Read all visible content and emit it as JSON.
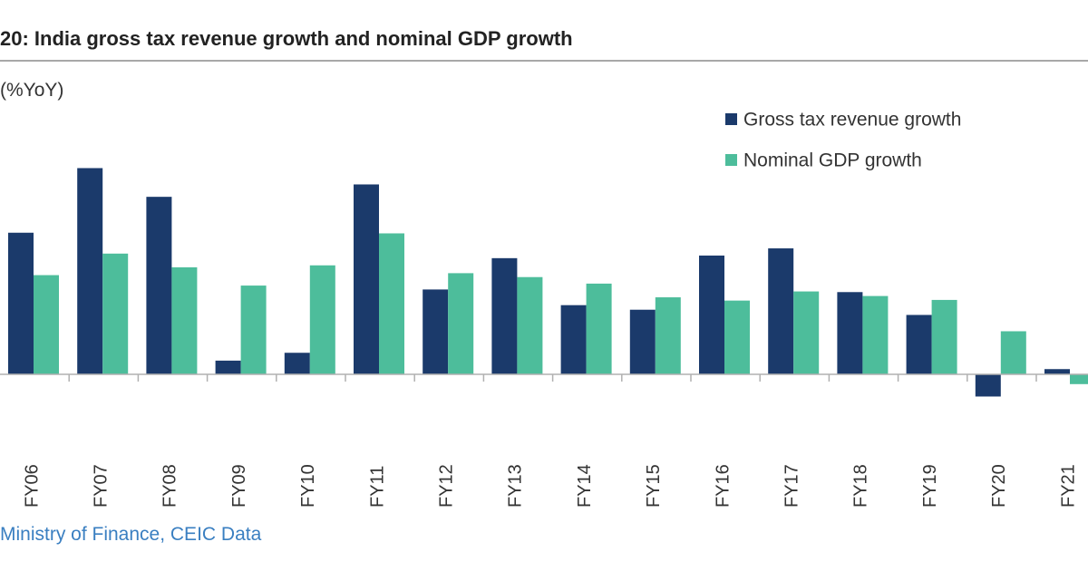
{
  "title": "20: India gross tax revenue growth and nominal GDP growth",
  "source": "Ministry of Finance, CEIC Data",
  "chart_data": {
    "type": "bar",
    "ylabel": "(%YoY)",
    "categories": [
      "FY06",
      "FY07",
      "FY08",
      "FY09",
      "FY10",
      "FY11",
      "FY12",
      "FY13",
      "FY14",
      "FY15",
      "FY16",
      "FY17",
      "FY18",
      "FY19",
      "FY20",
      "FY21"
    ],
    "series": [
      {
        "name": "Gross tax revenue growth",
        "color": "#1b3a6b",
        "values": [
          21.7,
          31.6,
          27.2,
          2.1,
          3.3,
          29.1,
          13.0,
          17.8,
          10.6,
          9.9,
          18.2,
          19.3,
          12.6,
          9.1,
          -3.4,
          0.8
        ]
      },
      {
        "name": "Nominal GDP growth",
        "color": "#4dbd9b",
        "values": [
          15.2,
          18.5,
          16.4,
          13.6,
          16.7,
          21.6,
          15.5,
          14.9,
          13.9,
          11.8,
          11.3,
          12.7,
          12.0,
          11.4,
          6.6,
          -1.5
        ]
      }
    ],
    "legend": "top-right",
    "grid": false
  }
}
